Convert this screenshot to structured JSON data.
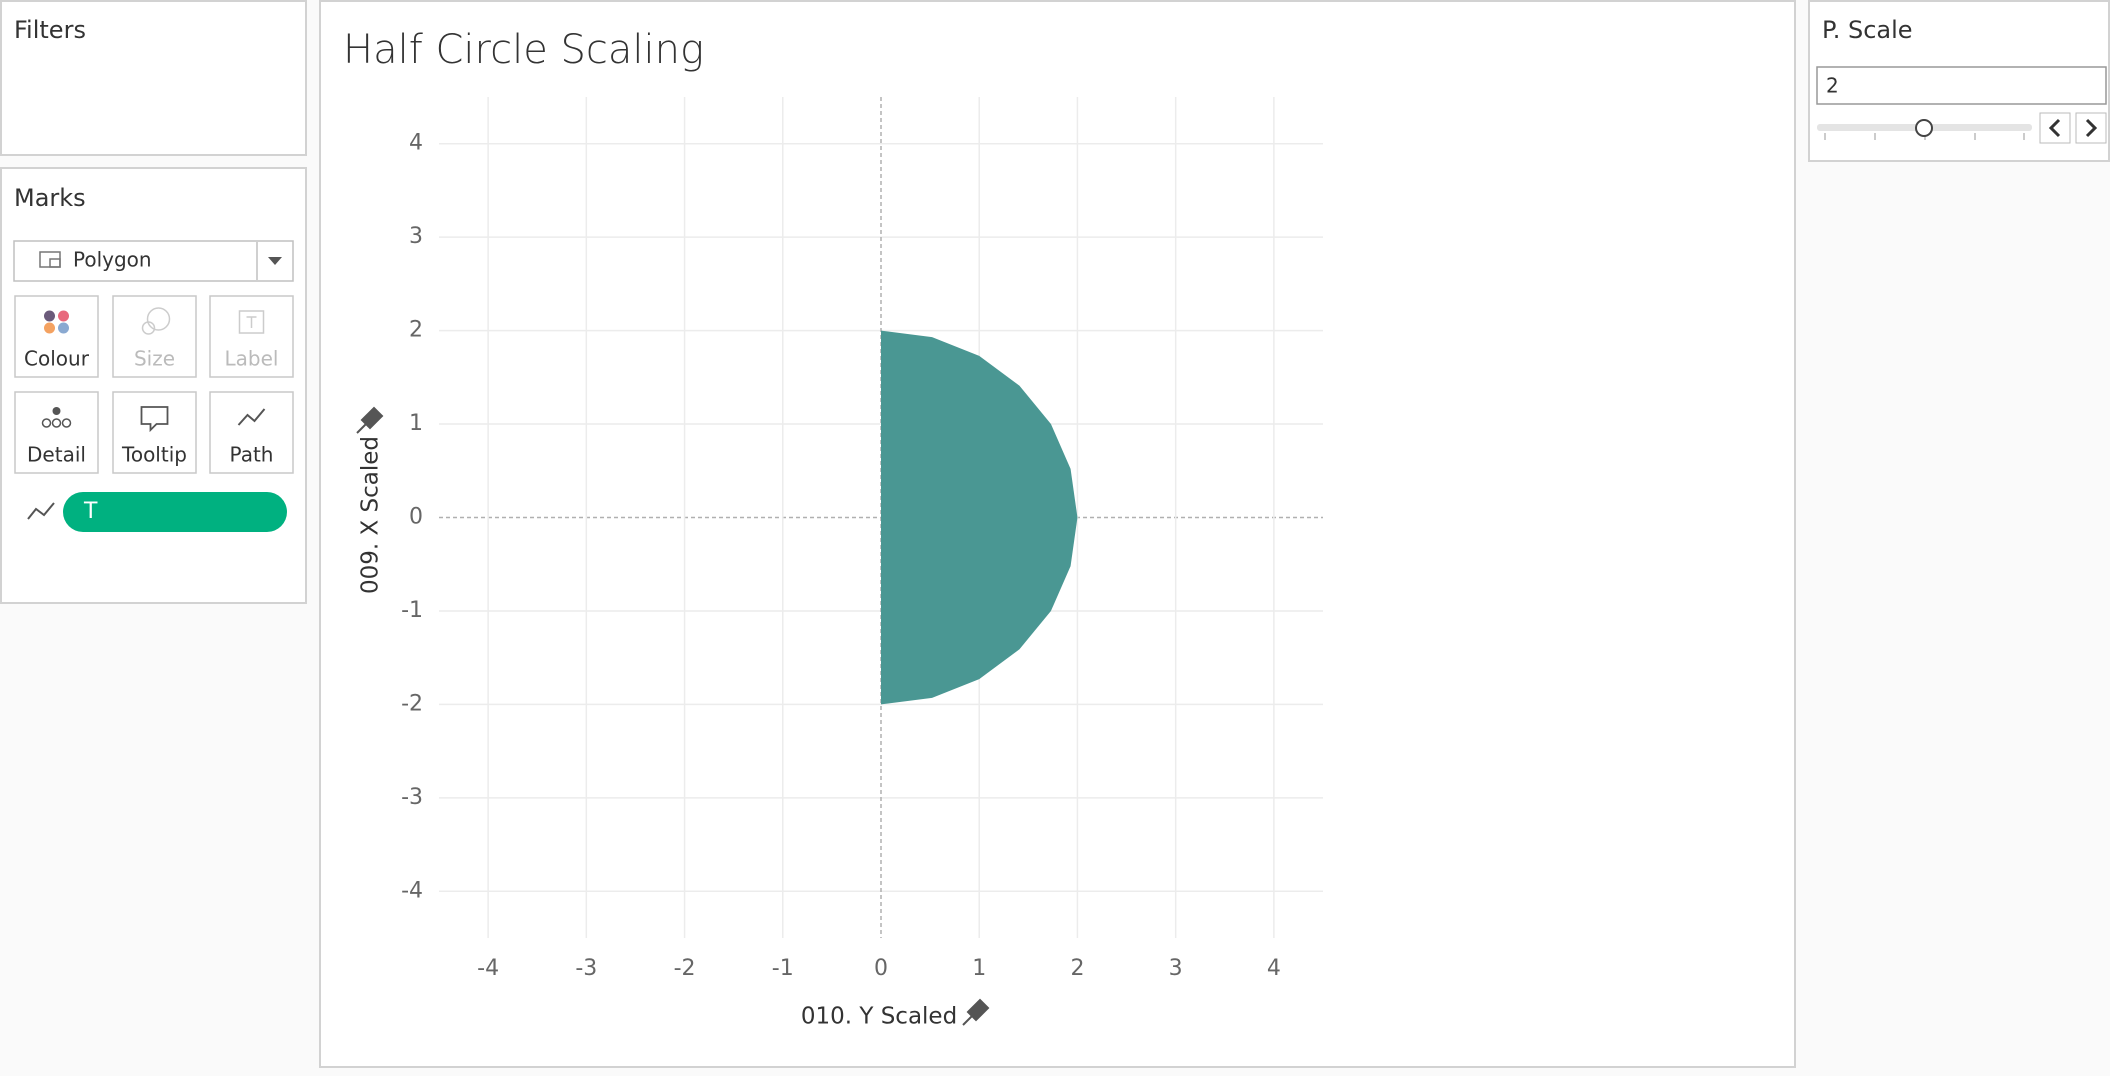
{
  "filters": {
    "title": "Filters"
  },
  "marks": {
    "title": "Marks",
    "mark_type": "Polygon",
    "cards": [
      "Colour",
      "Size",
      "Label",
      "Detail",
      "Tooltip",
      "Path"
    ],
    "pill": "T"
  },
  "parameter": {
    "title": "P. Scale",
    "value": "2"
  },
  "chart_data": {
    "type": "polygon",
    "title": "Half Circle Scaling",
    "x_label": "010. Y Scaled",
    "y_label": "009. X Scaled",
    "x": [
      0,
      0.52,
      1,
      1.41,
      1.73,
      1.93,
      2,
      1.93,
      1.73,
      1.41,
      1,
      0.52,
      0
    ],
    "y": [
      2,
      1.93,
      1.73,
      1.41,
      1,
      0.52,
      0,
      -0.52,
      -1,
      -1.41,
      -1.73,
      -1.93,
      -2
    ],
    "color": "#4a9793",
    "xlim": [
      -4.5,
      4.5
    ],
    "ylim": [
      -4.5,
      4.5
    ],
    "xticks": [
      -4,
      -3,
      -2,
      -1,
      0,
      1,
      2,
      3,
      4
    ],
    "yticks": [
      -4,
      -3,
      -2,
      -1,
      0,
      1,
      2,
      3,
      4
    ],
    "grid": true
  }
}
